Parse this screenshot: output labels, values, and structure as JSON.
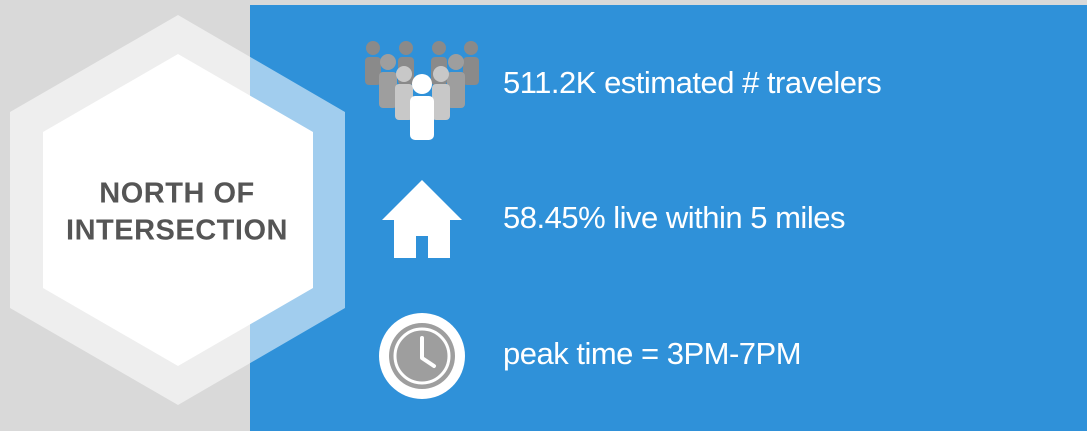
{
  "label": {
    "lines": [
      "NORTH OF",
      "INTERSECTION"
    ]
  },
  "stats": [
    {
      "text": "511.2K estimated # travelers"
    },
    {
      "text": "58.45% live within 5 miles"
    },
    {
      "text": "peak time = 3PM-7PM"
    }
  ]
}
